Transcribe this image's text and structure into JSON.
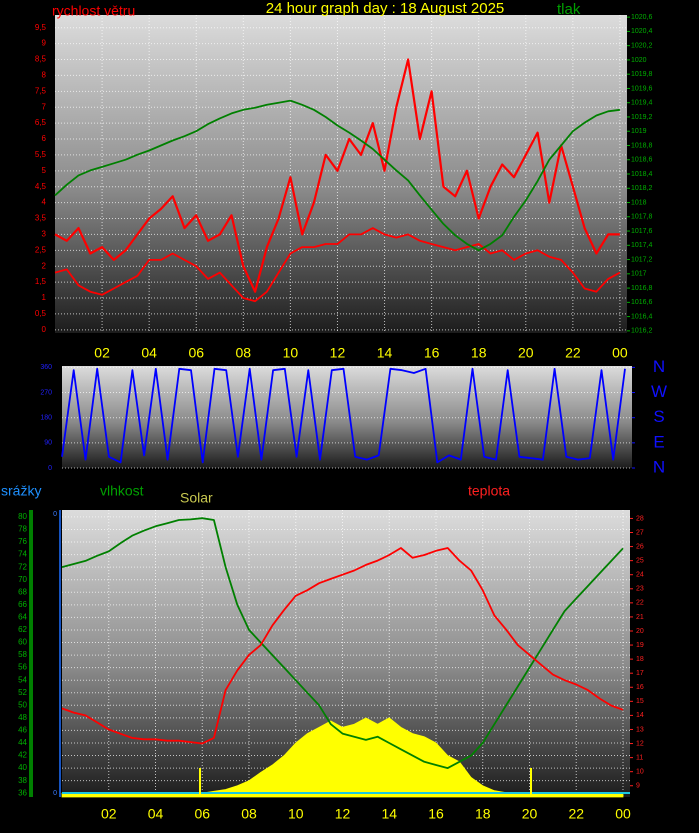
{
  "title": "24 hour graph day : 18 August 2025",
  "chart_data": [
    {
      "type": "line",
      "x": [
        0,
        0.5,
        1,
        1.5,
        2,
        2.5,
        3,
        3.5,
        4,
        4.5,
        5,
        5.5,
        6,
        6.5,
        7,
        7.5,
        8,
        8.5,
        9,
        9.5,
        10,
        10.5,
        11,
        11.5,
        12,
        12.5,
        13,
        13.5,
        14,
        14.5,
        15,
        15.5,
        16,
        16.5,
        17,
        17.5,
        18,
        18.5,
        19,
        19.5,
        20,
        20.5,
        21,
        21.5,
        22,
        22.5,
        23,
        23.5,
        24
      ],
      "xlim": [
        0,
        24.3
      ],
      "xticks": [
        {
          "value": 2,
          "label": "02"
        },
        {
          "value": 4,
          "label": "04"
        },
        {
          "value": 6,
          "label": "06"
        },
        {
          "value": 8,
          "label": "08"
        },
        10,
        12,
        14,
        16,
        18,
        20,
        22,
        {
          "value": 24,
          "label": "00"
        }
      ],
      "ylim": [
        -0.1,
        9.9
      ],
      "yticks": [
        0,
        {
          "value": 0.5,
          "label": "0,5"
        },
        1,
        {
          "value": 1.5,
          "label": "1,5"
        },
        2,
        {
          "value": 2.5,
          "label": "2,5"
        },
        3,
        {
          "value": 3.5,
          "label": "3,5"
        },
        4,
        {
          "value": 4.5,
          "label": "4,5"
        },
        5,
        {
          "value": 5.5,
          "label": "5,5"
        },
        6,
        {
          "value": 6.5,
          "label": "6,5"
        },
        7,
        {
          "value": 7.5,
          "label": "7,5"
        },
        8,
        {
          "value": 8.5,
          "label": "8,5"
        },
        9,
        {
          "value": 9.5,
          "label": "9,5"
        }
      ],
      "y2lim": [
        1016.17,
        1020.63
      ],
      "y2ticks": [
        {
          "value": 1016.2,
          "label": "1016,2"
        },
        {
          "value": 1016.4,
          "label": "1016,4"
        },
        {
          "value": 1016.6,
          "label": "1016,6"
        },
        {
          "value": 1016.8,
          "label": "1016,8"
        },
        1017,
        {
          "value": 1017.2,
          "label": "1017,2"
        },
        {
          "value": 1017.4,
          "label": "1017,4"
        },
        {
          "value": 1017.6,
          "label": "1017,6"
        },
        {
          "value": 1017.8,
          "label": "1017,8"
        },
        1018,
        {
          "value": 1018.2,
          "label": "1018,2"
        },
        {
          "value": 1018.4,
          "label": "1018,4"
        },
        {
          "value": 1018.6,
          "label": "1018,6"
        },
        {
          "value": 1018.8,
          "label": "1018,8"
        },
        1019,
        {
          "value": 1019.2,
          "label": "1019,2"
        },
        {
          "value": 1019.4,
          "label": "1019,4"
        },
        {
          "value": 1019.6,
          "label": "1019,6"
        },
        {
          "value": 1019.8,
          "label": "1019,8"
        },
        1020,
        {
          "value": 1020.2,
          "label": "1020,2"
        },
        {
          "value": 1020.4,
          "label": "1020,4"
        },
        {
          "value": 1020.6,
          "label": "1020,6"
        }
      ],
      "grid": true,
      "series": [
        {
          "name": "rychlost větru",
          "color": "#ff0000",
          "values": [
            3,
            2.8,
            3.2,
            2.4,
            2.6,
            2.2,
            2.5,
            3.0,
            3.5,
            3.8,
            4.2,
            3.2,
            3.6,
            2.8,
            3.0,
            3.6,
            2.0,
            1.2,
            2.6,
            3.5,
            4.8,
            3.0,
            4.0,
            5.5,
            5.0,
            6.0,
            5.5,
            6.5,
            5.0,
            7.0,
            8.5,
            6.0,
            7.5,
            4.5,
            4.2,
            5.0,
            3.5,
            4.5,
            5.2,
            4.8,
            5.5,
            6.2,
            4.0,
            5.8,
            4.5,
            3.2,
            2.4,
            3.0,
            3.0
          ]
        },
        {
          "color": "#ff0000",
          "values": [
            1.8,
            1.9,
            1.4,
            1.2,
            1.1,
            1.3,
            1.5,
            1.7,
            2.2,
            2.2,
            2.4,
            2.2,
            2.0,
            1.6,
            1.8,
            1.4,
            1.0,
            0.9,
            1.2,
            1.8,
            2.4,
            2.6,
            2.6,
            2.7,
            2.7,
            3.0,
            3.0,
            3.2,
            3.0,
            2.9,
            3.0,
            2.8,
            2.7,
            2.6,
            2.5,
            2.6,
            2.7,
            2.4,
            2.5,
            2.2,
            2.4,
            2.5,
            2.3,
            2.2,
            1.8,
            1.3,
            1.2,
            1.6,
            1.8
          ]
        },
        {
          "name": "tlak",
          "color": "#008000",
          "axis": "y2",
          "values": [
            1018.1,
            1018.25,
            1018.38,
            1018.45,
            1018.5,
            1018.55,
            1018.6,
            1018.67,
            1018.73,
            1018.8,
            1018.87,
            1018.93,
            1019.0,
            1019.1,
            1019.18,
            1019.25,
            1019.3,
            1019.33,
            1019.37,
            1019.4,
            1019.43,
            1019.37,
            1019.3,
            1019.2,
            1019.08,
            1018.98,
            1018.87,
            1018.75,
            1018.6,
            1018.45,
            1018.31,
            1018.1,
            1017.9,
            1017.7,
            1017.54,
            1017.42,
            1017.33,
            1017.42,
            1017.54,
            1017.8,
            1018.03,
            1018.3,
            1018.6,
            1018.8,
            1019.0,
            1019.12,
            1019.22,
            1019.28,
            1019.3
          ]
        }
      ]
    },
    {
      "type": "line",
      "x": [
        0,
        0.5,
        1,
        1.5,
        2,
        2.5,
        3,
        3.5,
        4,
        4.5,
        5,
        5.5,
        6,
        6.5,
        7,
        7.5,
        8,
        8.5,
        9,
        9.5,
        10,
        10.5,
        11,
        11.5,
        12,
        12.5,
        13,
        13.5,
        14,
        14.5,
        15,
        15.5,
        16,
        16.5,
        17,
        17.5,
        18,
        18.5,
        19,
        19.5,
        20,
        20.5,
        21,
        21.5,
        22,
        22.5,
        23,
        23.5,
        24
      ],
      "xlim": [
        0,
        24.3
      ],
      "ylim": [
        0,
        365
      ],
      "yticks": [
        0,
        90,
        180,
        270,
        360
      ],
      "y2lim": [
        0,
        365
      ],
      "y2ticks": [
        {
          "value": 360,
          "label": "N"
        },
        {
          "value": 270,
          "label": "W"
        },
        {
          "value": 180,
          "label": "S"
        },
        {
          "value": 90,
          "label": "E"
        },
        {
          "value": 0,
          "label": "N"
        }
      ],
      "grid": true,
      "series": [
        {
          "color": "#0000ff",
          "values": [
            40,
            350,
            30,
            355,
            40,
            20,
            350,
            45,
            355,
            30,
            355,
            350,
            20,
            355,
            350,
            40,
            355,
            30,
            350,
            355,
            40,
            350,
            30,
            350,
            355,
            40,
            30,
            45,
            355,
            350,
            340,
            355,
            20,
            45,
            30,
            355,
            40,
            30,
            350,
            40,
            35,
            30,
            355,
            40,
            30,
            35,
            350,
            30,
            355
          ]
        }
      ]
    },
    {
      "type": "line",
      "x": [
        0,
        0.5,
        1,
        1.5,
        2,
        2.5,
        3,
        3.5,
        4,
        4.5,
        5,
        5.5,
        6,
        6.5,
        7,
        7.5,
        8,
        8.5,
        9,
        9.5,
        10,
        10.5,
        11,
        11.5,
        12,
        12.5,
        13,
        13.5,
        14,
        14.5,
        15,
        15.5,
        16,
        16.5,
        17,
        17.5,
        18,
        18.5,
        19,
        19.5,
        20,
        20.5,
        21,
        21.5,
        22,
        22.5,
        23,
        23.5,
        24
      ],
      "xlim": [
        0,
        24.3
      ],
      "xticks": [
        {
          "value": 2,
          "label": "02"
        },
        {
          "value": 4,
          "label": "04"
        },
        {
          "value": 6,
          "label": "06"
        },
        {
          "value": 8,
          "label": "08"
        },
        10,
        12,
        14,
        16,
        18,
        20,
        22,
        {
          "value": 24,
          "label": "00"
        }
      ],
      "ylim": [
        35.4,
        81.1
      ],
      "yticks": [
        36,
        38,
        40,
        42,
        44,
        46,
        48,
        50,
        52,
        54,
        56,
        58,
        60,
        62,
        64,
        66,
        68,
        70,
        72,
        74,
        76,
        78,
        80
      ],
      "y2lim": [
        8.2,
        28.6
      ],
      "y2ticks": [
        9,
        10,
        11,
        12,
        13,
        14,
        15,
        16,
        17,
        18,
        19,
        20,
        21,
        22,
        23,
        24,
        25,
        26,
        27,
        28
      ],
      "grid": true,
      "rain_axis": {
        "label": "srážky",
        "tick_labels": [
          "0",
          "0"
        ]
      },
      "series": [
        {
          "name": "Solar",
          "color": "#ffff00",
          "type": "area",
          "values": [
            36,
            36,
            36,
            36,
            36,
            36,
            36,
            36,
            36,
            36,
            36,
            36,
            36,
            36.3,
            36.6,
            37.2,
            38,
            39.3,
            40.5,
            42,
            44,
            45.5,
            46.5,
            47.5,
            46.5,
            47,
            48,
            47,
            48,
            46.5,
            45.5,
            45,
            44,
            42,
            41,
            38.5,
            37.2,
            36.4,
            36.1,
            36,
            36,
            36,
            36,
            36,
            36,
            36,
            36,
            36,
            36
          ]
        },
        {
          "name": "vlhkost",
          "color": "#008000",
          "values": [
            72,
            72.5,
            73,
            73.8,
            74.5,
            75.8,
            77,
            77.8,
            78.5,
            79,
            79.5,
            79.6,
            79.8,
            79.5,
            72,
            66,
            62,
            60,
            58,
            56,
            54,
            52,
            50,
            47,
            45.5,
            45,
            44.5,
            45,
            44,
            43,
            42,
            41,
            40.5,
            40,
            41,
            42,
            44,
            47,
            50,
            53,
            56,
            59,
            62,
            65,
            67,
            69,
            71,
            73,
            75
          ]
        },
        {
          "name": "teplota",
          "color": "#ff0000",
          "axis": "y2",
          "values": [
            14.5,
            14.2,
            14.0,
            13.5,
            13.0,
            12.7,
            12.4,
            12.3,
            12.3,
            12.2,
            12.2,
            12.1,
            12.0,
            12.4,
            15.8,
            17.2,
            18.3,
            19.0,
            20.4,
            21.5,
            22.5,
            22.9,
            23.4,
            23.7,
            24.0,
            24.3,
            24.7,
            25.0,
            25.4,
            25.9,
            25.2,
            25.4,
            25.7,
            25.9,
            25.0,
            24.3,
            22.9,
            21.1,
            20.1,
            19.0,
            18.3,
            17.6,
            16.9,
            16.5,
            16.2,
            15.8,
            15.2,
            14.7,
            14.4
          ]
        }
      ]
    }
  ]
}
